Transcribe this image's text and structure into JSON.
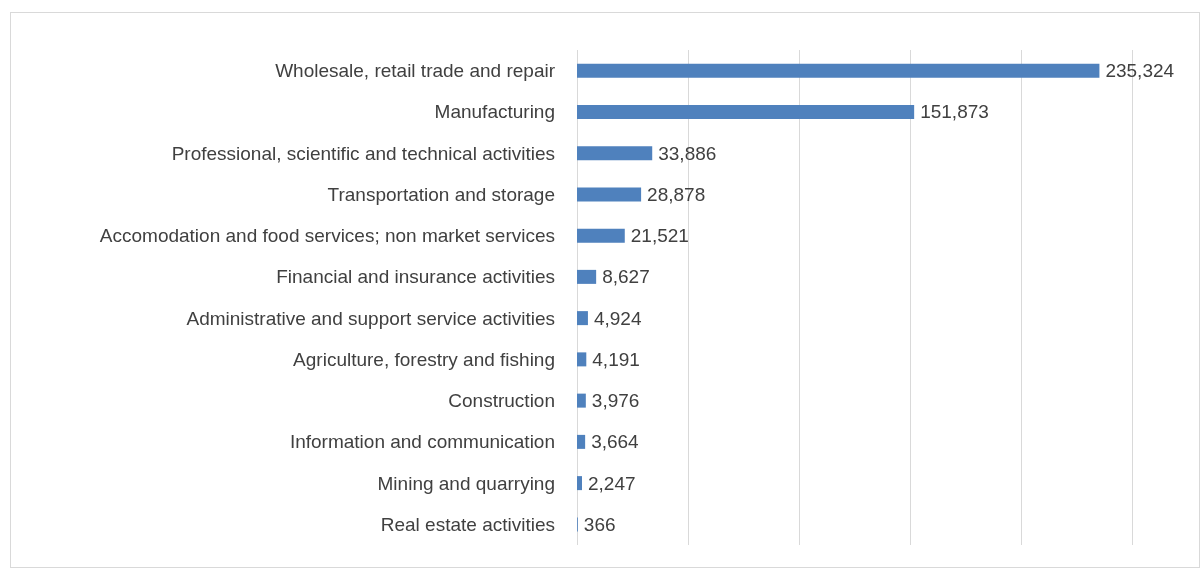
{
  "chart_data": {
    "type": "bar",
    "orientation": "horizontal",
    "categories": [
      "Wholesale, retail trade and repair",
      "Manufacturing",
      "Professional, scientific and technical activities",
      "Transportation and storage",
      "Accomodation and food services; non market services",
      "Financial and insurance activities",
      "Administrative and support service activities",
      "Agriculture, forestry and fishing",
      "Construction",
      "Information and communication",
      "Mining and quarrying",
      "Real estate activities"
    ],
    "values": [
      235324,
      151873,
      33886,
      28878,
      21521,
      8627,
      4924,
      4191,
      3976,
      3664,
      2247,
      366
    ],
    "value_labels": [
      "235,324",
      "151,873",
      "33,886",
      "28,878",
      "21,521",
      "8,627",
      "4,924",
      "4,191",
      "3,976",
      "3,664",
      "2,247",
      "366"
    ],
    "color": "#4f81bd",
    "xlim": [
      0,
      250000
    ],
    "xticks": [
      {
        "value": 0,
        "label": null
      },
      {
        "value": 50000,
        "label": null
      },
      {
        "value": 100000,
        "label": null
      },
      {
        "value": 150000,
        "label": null
      },
      {
        "value": 200000,
        "label": null
      },
      {
        "value": 250000,
        "label": null
      }
    ],
    "tick_labels": "y",
    "grid": "x"
  }
}
